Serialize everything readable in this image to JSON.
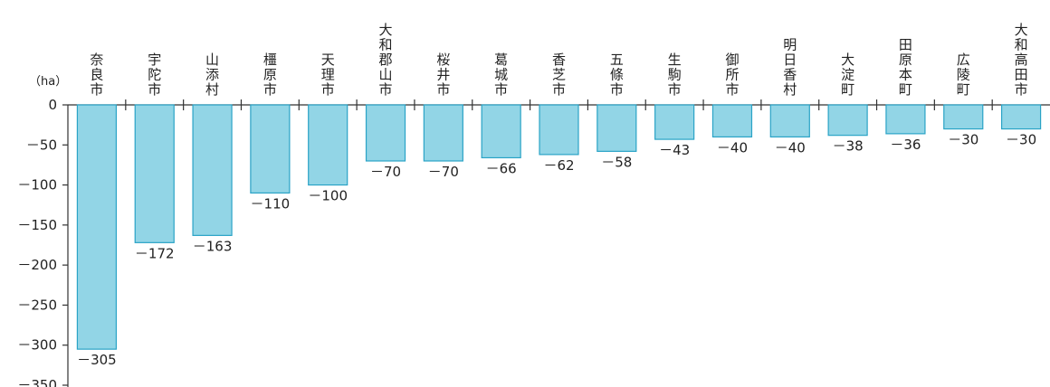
{
  "chart_data": {
    "type": "bar",
    "unit_label": "（ha）",
    "categories": [
      "奈良市",
      "宇陀市",
      "山添村",
      "橿原市",
      "天理市",
      "大和郡山市",
      "桜井市",
      "葛城市",
      "香芝市",
      "五條市",
      "生駒市",
      "御所市",
      "明日香村",
      "大淀町",
      "田原本町",
      "広陵町",
      "大和高田市"
    ],
    "values": [
      -305,
      -172,
      -163,
      -110,
      -100,
      -70,
      -70,
      -66,
      -62,
      -58,
      -43,
      -40,
      -40,
      -38,
      -36,
      -30,
      -30
    ],
    "value_labels": [
      "－305",
      "－172",
      "－163",
      "－110",
      "－100",
      "－70",
      "－70",
      "－66",
      "－62",
      "－58",
      "－43",
      "－40",
      "－40",
      "－38",
      "－36",
      "－30",
      "－30"
    ],
    "y_ticks": [
      0,
      -50,
      -100,
      -150,
      -200,
      -250,
      -300,
      -350
    ],
    "y_tick_labels": [
      "0",
      "－50",
      "－100",
      "－150",
      "－200",
      "－250",
      "－300",
      "－350"
    ],
    "ylim": [
      -350,
      0
    ],
    "grid": false,
    "colors": {
      "bar_fill": "#92d5e6",
      "bar_stroke": "#2aa3c6",
      "axis": "#333333"
    }
  }
}
